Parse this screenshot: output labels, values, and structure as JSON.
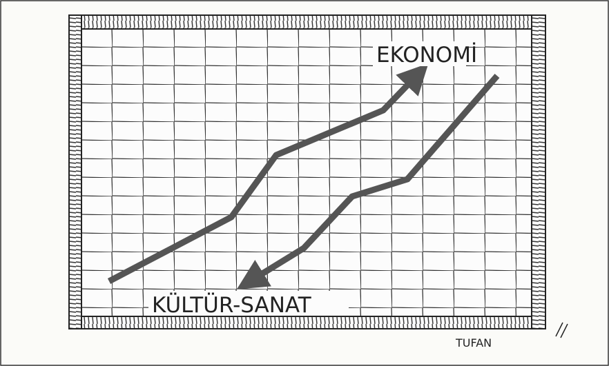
{
  "labels": {
    "economy": "EKONOMİ",
    "culture": "KÜLTÜR-SANAT"
  },
  "signature": "TUFAN"
}
